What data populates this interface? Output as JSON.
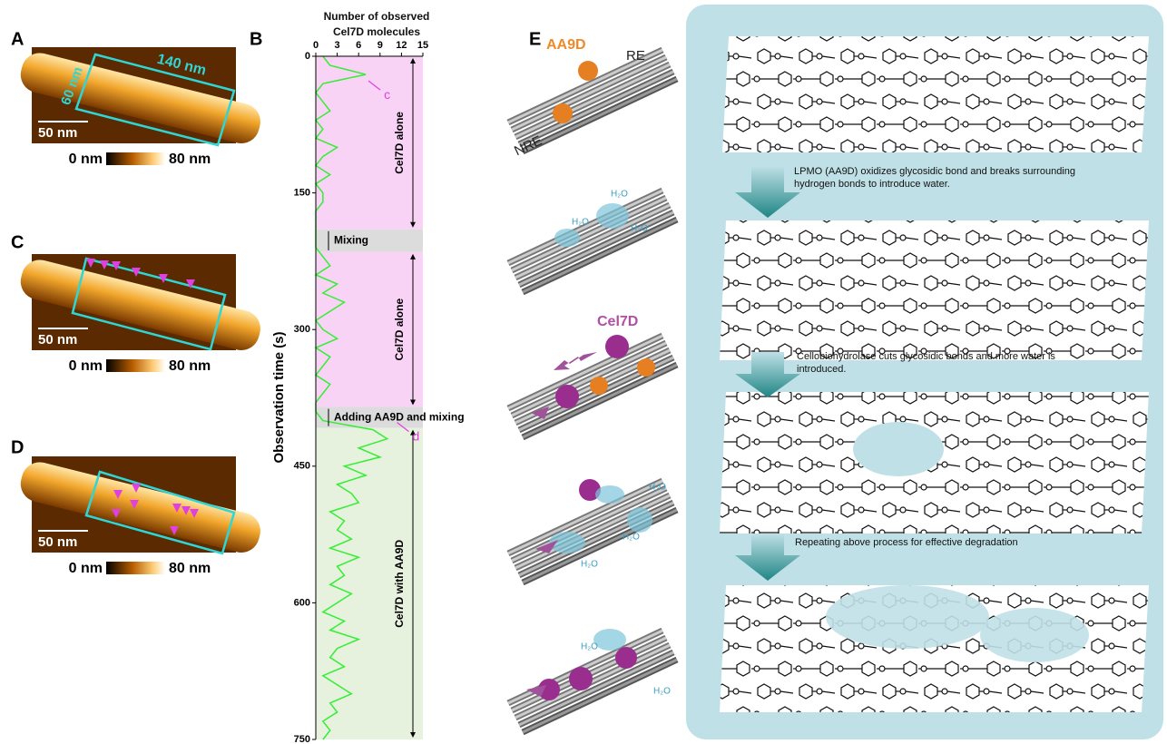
{
  "panels": {
    "a": "A",
    "b": "B",
    "c": "C",
    "d": "D",
    "e": "E"
  },
  "afm": {
    "scale_bar": "50 nm",
    "colorbar_min": "0 nm",
    "colorbar_max": "80 nm",
    "width_label": "60 nm",
    "length_label": "140 nm"
  },
  "chart_data": {
    "type": "line",
    "title": "Number of observed Cel7D molecules",
    "xlabel": "Observation time (s)",
    "x": [
      0,
      10,
      20,
      30,
      40,
      50,
      60,
      70,
      80,
      90,
      100,
      110,
      120,
      130,
      140,
      150,
      160,
      170,
      180,
      190,
      200,
      210,
      220,
      230,
      240,
      250,
      260,
      270,
      280,
      290,
      300,
      310,
      320,
      330,
      340,
      350,
      360,
      370,
      380,
      390,
      400,
      410,
      420,
      430,
      440,
      450,
      460,
      470,
      480,
      490,
      500,
      510,
      520,
      530,
      540,
      550,
      560,
      570,
      580,
      590,
      600,
      610,
      620,
      630,
      640,
      650,
      660,
      670,
      680,
      690,
      700,
      710,
      720,
      730,
      740,
      750
    ],
    "values": [
      1,
      2,
      7,
      1,
      0,
      1,
      2,
      0,
      1,
      0,
      3,
      1,
      0,
      2,
      0,
      1,
      1,
      0,
      0,
      0,
      0,
      0,
      1,
      2,
      0,
      3,
      1,
      4,
      2,
      0,
      1,
      3,
      0,
      2,
      1,
      0,
      2,
      1,
      0,
      0,
      1,
      8,
      10,
      6,
      9,
      4,
      7,
      3,
      5,
      6,
      2,
      4,
      3,
      5,
      2,
      6,
      3,
      4,
      2,
      5,
      3,
      1,
      4,
      2,
      6,
      3,
      2,
      4,
      1,
      3,
      5,
      2,
      3,
      1,
      2,
      1
    ],
    "color": "#33ee33",
    "xlim": [
      0,
      750
    ],
    "xticks": [
      0,
      150,
      300,
      450,
      600,
      750
    ],
    "ylim": [
      0,
      15
    ],
    "yticks": [
      0,
      3,
      6,
      9,
      12,
      15
    ],
    "regions": [
      {
        "label": "Cel7D alone",
        "start": 0,
        "end": 190,
        "color": "#f9d3f6"
      },
      {
        "label": "Mixing",
        "start": 190,
        "end": 215,
        "color": "#dcdcdc"
      },
      {
        "label": "Cel7D alone",
        "start": 215,
        "end": 385,
        "color": "#f9d3f6"
      },
      {
        "label": "Adding AA9D and mixing",
        "start": 385,
        "end": 408,
        "color": "#dcdcdc"
      },
      {
        "label": "Cel7D with AA9D",
        "start": 408,
        "end": 750,
        "color": "#e6f1de"
      }
    ],
    "annotations": [
      {
        "text": "c",
        "x": 25,
        "y": 7
      },
      {
        "text": "d",
        "x": 400,
        "y": 11
      }
    ]
  },
  "scheme": {
    "aa9d": "AA9D",
    "re": "RE",
    "nre": "NRE",
    "cel7d": "Cel7D",
    "water": "H₂O",
    "steps": [
      "LPMO (AA9D) oxidizes glycosidic bond and breaks surrounding hydrogen bonds to introduce water.",
      "Cellobiohydrolase cuts glycosidic bonds and more water is introduced.",
      "Repeating above process for effective degradation"
    ]
  }
}
